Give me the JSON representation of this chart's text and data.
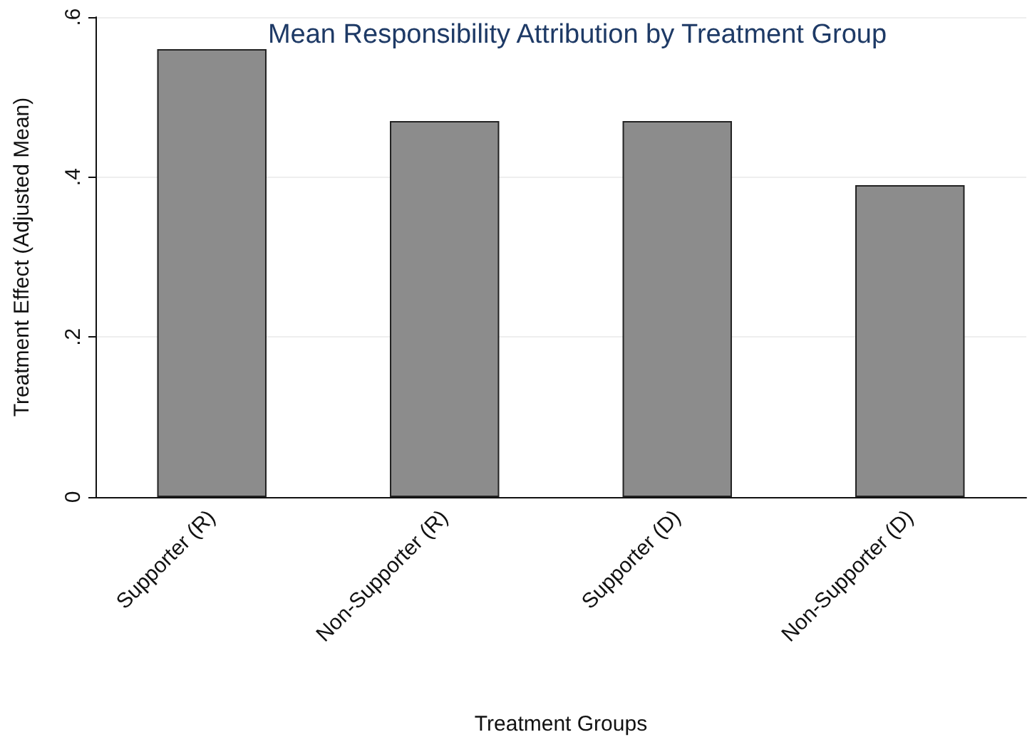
{
  "chart_data": {
    "type": "bar",
    "title": "Mean Responsibility Attribution by Treatment Group",
    "xlabel": "Treatment Groups",
    "ylabel": "Treatment Effect (Adjusted Mean)",
    "categories": [
      "Supporter (R)",
      "Non-Supporter (R)",
      "Supporter (D)",
      "Non-Supporter (D)"
    ],
    "values": [
      0.56,
      0.47,
      0.47,
      0.39
    ],
    "color": "#8c8c8c",
    "ylim": [
      0,
      0.6
    ],
    "yticks": [
      {
        "value": 0,
        "label": "0"
      },
      {
        "value": 0.2,
        "label": ".2"
      },
      {
        "value": 0.4,
        "label": ".4"
      },
      {
        "value": 0.6,
        "label": ".6"
      }
    ],
    "grid": "y"
  }
}
